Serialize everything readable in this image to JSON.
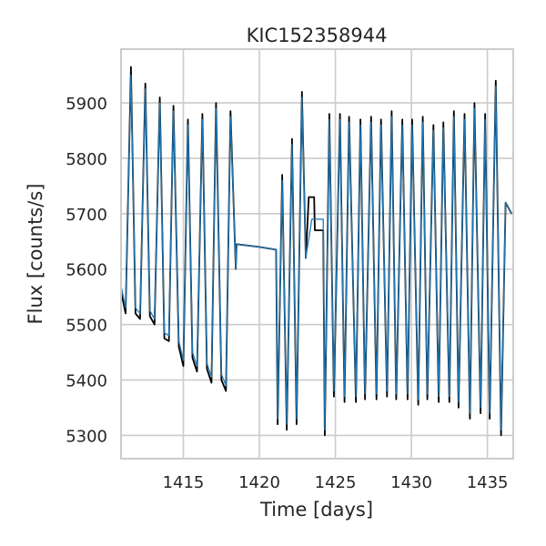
{
  "chart_data": {
    "type": "line",
    "title": "KIC152358944",
    "xlabel": "Time [days]",
    "ylabel": "Flux [counts/s]",
    "xlim": [
      1410.9,
      1436.7
    ],
    "ylim": [
      5258,
      5997
    ],
    "xticks": [
      1415,
      1420,
      1425,
      1430,
      1435
    ],
    "yticks": [
      5300,
      5400,
      5500,
      5600,
      5700,
      5800,
      5900
    ],
    "grid": true,
    "legend": "none",
    "series": [
      {
        "style": "raw",
        "color": "#000000",
        "x": [
          1410.9,
          1411.2,
          1411.55,
          1411.85,
          1412.15,
          1412.5,
          1412.8,
          1413.1,
          1413.45,
          1413.75,
          1414.05,
          1414.35,
          1414.7,
          1415.0,
          1415.3,
          1415.6,
          1415.9,
          1416.25,
          1416.55,
          1416.85,
          1417.15,
          1417.5,
          1417.8,
          1418.1,
          1418.45,
          1418.5,
          1420.0,
          1421.1,
          1421.2,
          1421.5,
          1421.8,
          1422.15,
          1422.45,
          1422.8,
          1423.05,
          1423.25,
          1423.35,
          1423.6,
          1423.65,
          1424.2,
          1424.3,
          1424.6,
          1424.9,
          1425.3,
          1425.6,
          1425.9,
          1426.35,
          1426.65,
          1426.95,
          1427.35,
          1427.7,
          1428.0,
          1428.4,
          1428.7,
          1429.0,
          1429.4,
          1429.75,
          1430.05,
          1430.45,
          1430.75,
          1431.05,
          1431.45,
          1431.8,
          1432.1,
          1432.5,
          1432.8,
          1433.1,
          1433.5,
          1433.85,
          1434.15,
          1434.55,
          1434.85,
          1435.15,
          1435.55,
          1435.9,
          1436.2,
          1436.6
        ],
        "y": [
          5560,
          5520,
          5965,
          5520,
          5510,
          5935,
          5515,
          5500,
          5910,
          5475,
          5470,
          5895,
          5460,
          5425,
          5870,
          5440,
          5415,
          5880,
          5420,
          5395,
          5900,
          5400,
          5380,
          5885,
          5600,
          5645,
          5640,
          5635,
          5320,
          5770,
          5310,
          5835,
          5320,
          5920,
          5620,
          5730,
          5730,
          5730,
          5670,
          5670,
          5300,
          5880,
          5370,
          5880,
          5360,
          5875,
          5360,
          5870,
          5365,
          5875,
          5365,
          5870,
          5370,
          5885,
          5365,
          5870,
          5365,
          5870,
          5355,
          5875,
          5365,
          5860,
          5360,
          5865,
          5360,
          5885,
          5350,
          5880,
          5330,
          5900,
          5340,
          5880,
          5330,
          5940,
          5300,
          5720,
          5700
        ]
      },
      {
        "style": "smoothed",
        "color": "#1f77b4",
        "x": [
          1410.9,
          1411.2,
          1411.55,
          1411.85,
          1412.15,
          1412.5,
          1412.8,
          1413.1,
          1413.45,
          1413.75,
          1414.05,
          1414.35,
          1414.7,
          1415.0,
          1415.3,
          1415.6,
          1415.9,
          1416.25,
          1416.55,
          1416.85,
          1417.15,
          1417.5,
          1417.8,
          1418.1,
          1418.45,
          1418.5,
          1420.0,
          1421.1,
          1421.2,
          1421.5,
          1421.8,
          1422.15,
          1422.45,
          1422.8,
          1423.05,
          1423.45,
          1423.5,
          1424.2,
          1424.3,
          1424.6,
          1424.9,
          1425.3,
          1425.6,
          1425.9,
          1426.35,
          1426.65,
          1426.95,
          1427.35,
          1427.7,
          1428.0,
          1428.4,
          1428.7,
          1429.0,
          1429.4,
          1429.75,
          1430.05,
          1430.45,
          1430.75,
          1431.05,
          1431.45,
          1431.8,
          1432.1,
          1432.5,
          1432.8,
          1433.1,
          1433.5,
          1433.85,
          1434.15,
          1434.55,
          1434.85,
          1435.15,
          1435.55,
          1435.9,
          1436.2,
          1436.6
        ],
        "y": [
          5570,
          5530,
          5950,
          5530,
          5520,
          5925,
          5525,
          5510,
          5900,
          5485,
          5480,
          5885,
          5470,
          5435,
          5860,
          5450,
          5425,
          5870,
          5430,
          5405,
          5890,
          5410,
          5390,
          5875,
          5600,
          5645,
          5640,
          5635,
          5330,
          5760,
          5320,
          5825,
          5330,
          5910,
          5620,
          5690,
          5690,
          5690,
          5310,
          5870,
          5380,
          5870,
          5370,
          5865,
          5370,
          5860,
          5375,
          5865,
          5375,
          5860,
          5380,
          5875,
          5375,
          5860,
          5375,
          5860,
          5365,
          5865,
          5375,
          5850,
          5370,
          5855,
          5370,
          5875,
          5360,
          5870,
          5340,
          5890,
          5350,
          5870,
          5340,
          5930,
          5310,
          5720,
          5700
        ]
      }
    ]
  }
}
